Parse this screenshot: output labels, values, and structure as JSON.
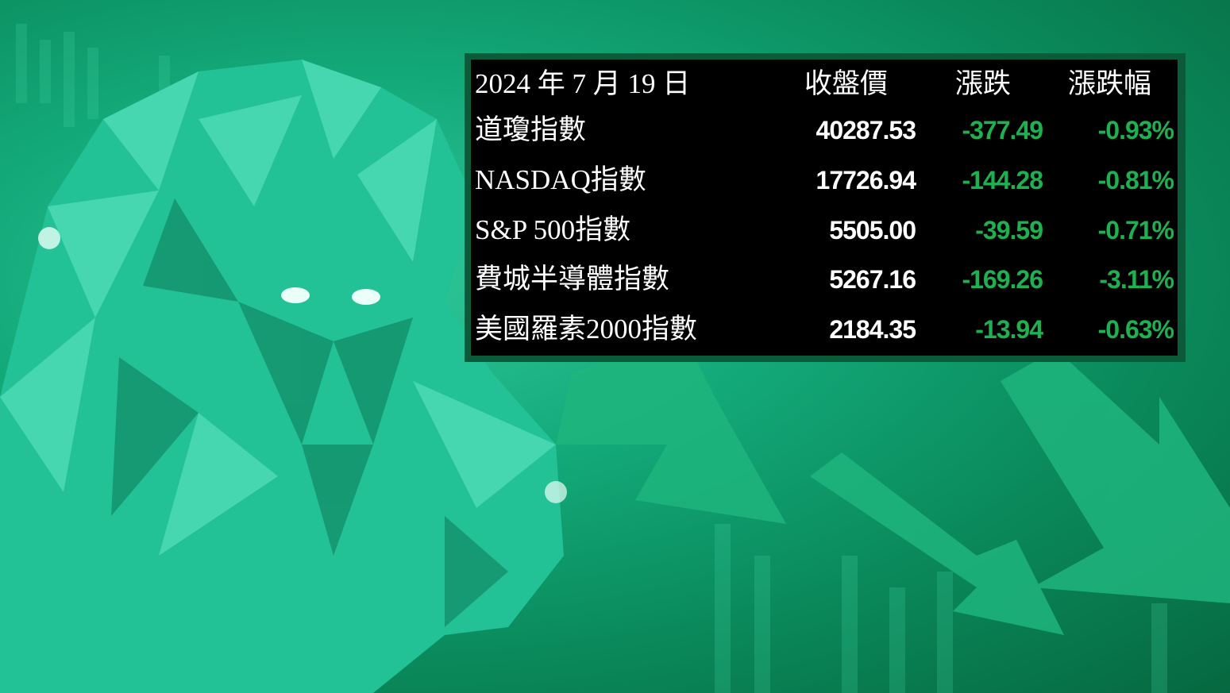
{
  "header": {
    "date": "2024 年 7 月 19 日",
    "close": "收盤價",
    "change": "漲跌",
    "change_pct": "漲跌幅"
  },
  "rows": [
    {
      "name": "道瓊指數",
      "close": "40287.53",
      "change": "-377.49",
      "change_pct": "-0.93%"
    },
    {
      "name": "NASDAQ指數",
      "close": "17726.94",
      "change": "-144.28",
      "change_pct": "-0.81%"
    },
    {
      "name": "S&P 500指數",
      "close": "5505.00",
      "change": "-39.59",
      "change_pct": "-0.71%"
    },
    {
      "name": "費城半導體指數",
      "close": "5267.16",
      "change": "-169.26",
      "change_pct": "-3.11%"
    },
    {
      "name": "美國羅素2000指數",
      "close": "2184.35",
      "change": "-13.94",
      "change_pct": "-0.63%"
    }
  ],
  "colors": {
    "negative": "#1db14f",
    "background": "#0a8a5c",
    "table": "#000000"
  }
}
